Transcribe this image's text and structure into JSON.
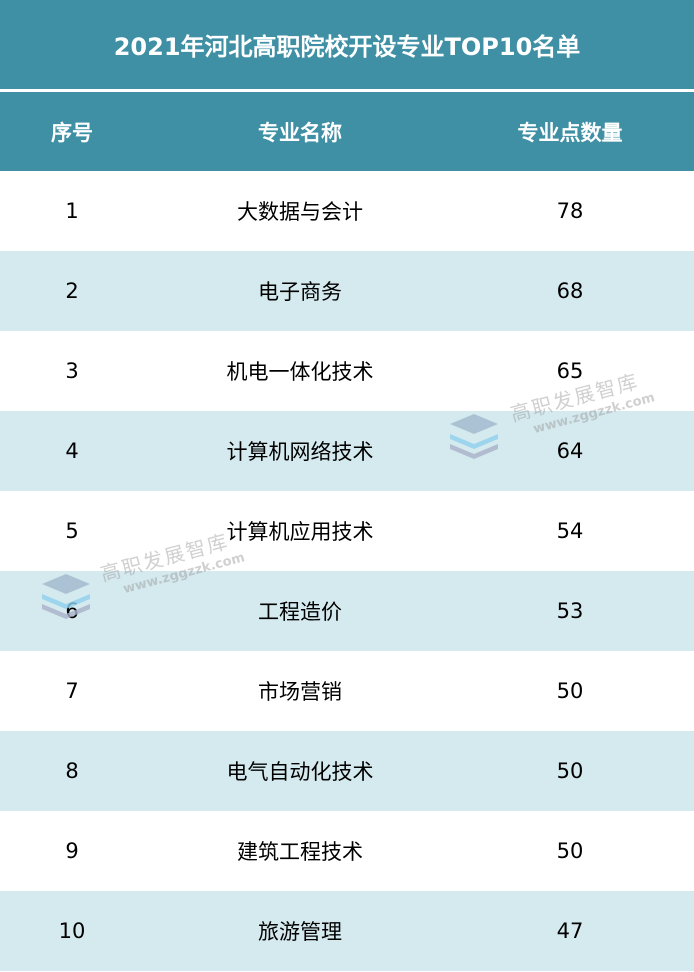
{
  "title": "2021年河北高职院校开设专业TOP10名单",
  "headers": [
    "序号",
    "专业名称",
    "专业点数量"
  ],
  "rows": [
    {
      "rank": "1",
      "major": "大数据与会计",
      "count": "78"
    },
    {
      "rank": "2",
      "major": "电子商务",
      "count": "68"
    },
    {
      "rank": "3",
      "major": "机电一体化技术",
      "count": "65"
    },
    {
      "rank": "4",
      "major": "计算机网络技术",
      "count": "64"
    },
    {
      "rank": "5",
      "major": "计算机应用技术",
      "count": "54"
    },
    {
      "rank": "6",
      "major": "工程造价",
      "count": "53"
    },
    {
      "rank": "7",
      "major": "市场营销",
      "count": "50"
    },
    {
      "rank": "8",
      "major": "电气自动化技术",
      "count": "50"
    },
    {
      "rank": "9",
      "major": "建筑工程技术",
      "count": "50"
    },
    {
      "rank": "10",
      "major": "旅游管理",
      "count": "47"
    }
  ],
  "watermark": {
    "name": "高职发展智库",
    "url": "www.zggzzk.com"
  },
  "colors": {
    "header": "#3f8fa5",
    "alt_row": "#d5eaef"
  }
}
